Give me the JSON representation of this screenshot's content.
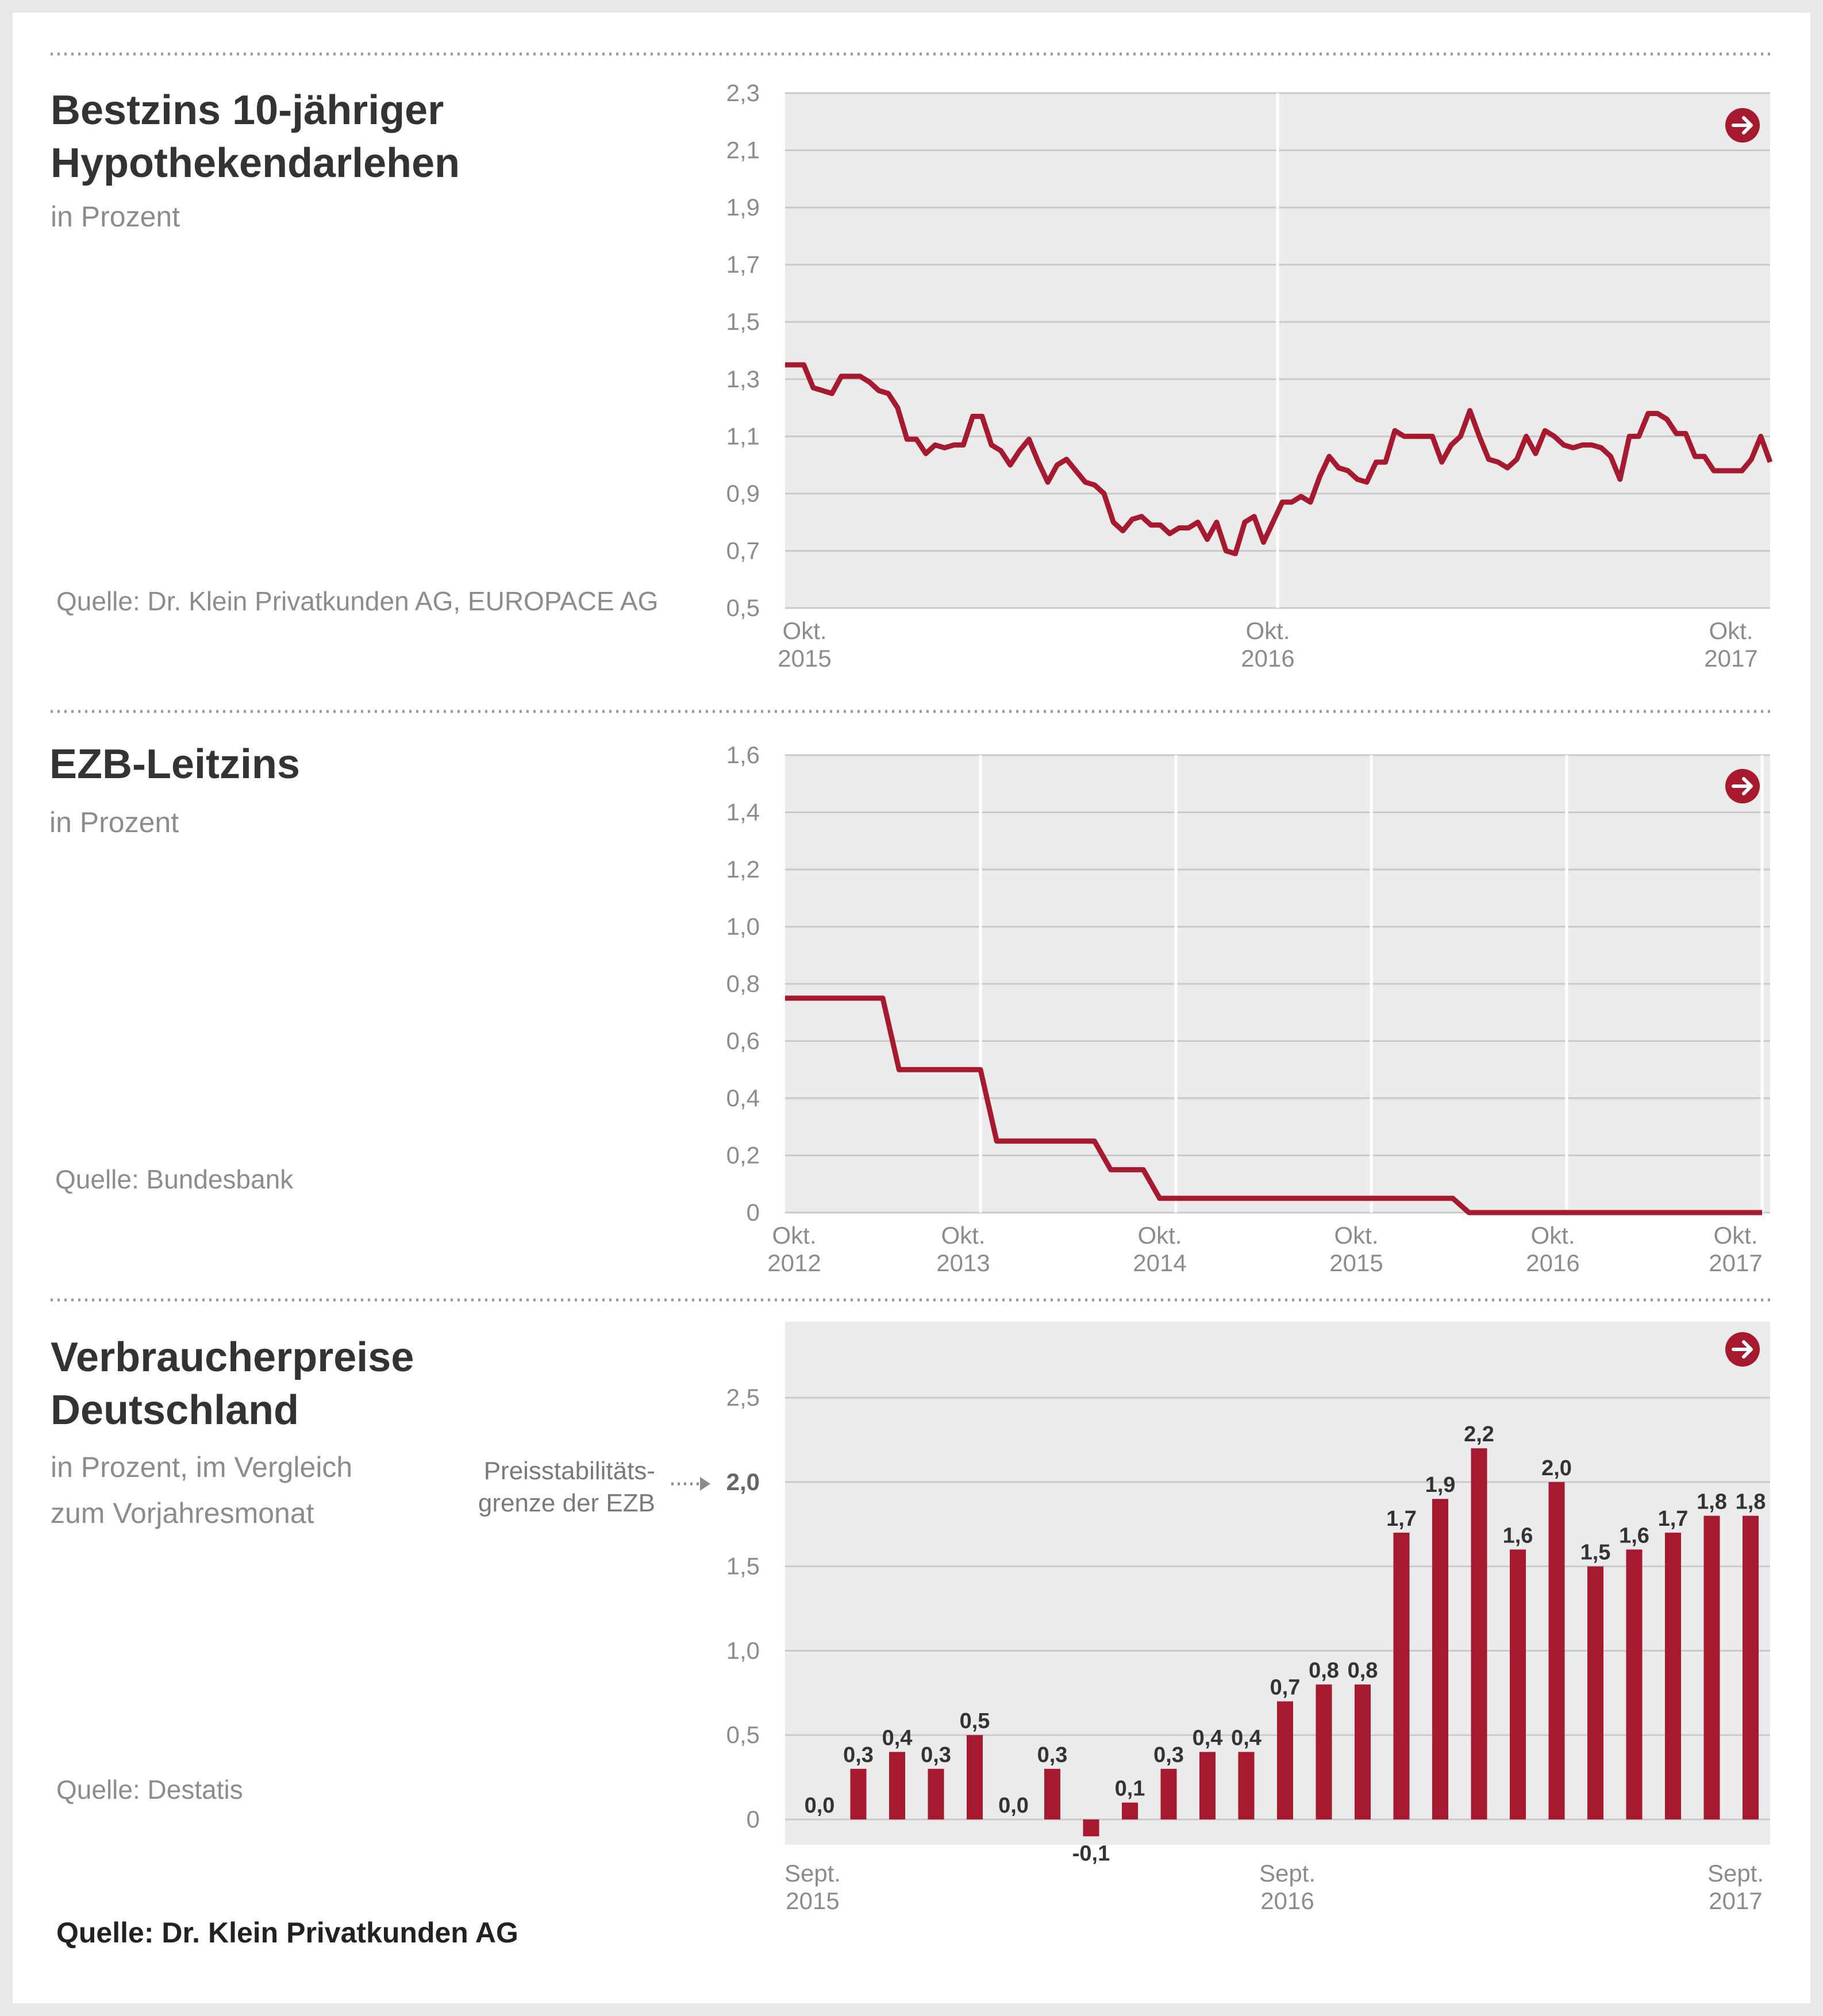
{
  "colors": {
    "accent": "#a6192e",
    "panel_bg": "#ebebeb",
    "grid": "#c9c9c9",
    "text": "#333333",
    "muted": "#8c8c8c"
  },
  "footer": {
    "source": "Quelle: Dr. Klein Privatkunden AG"
  },
  "panels": [
    {
      "title_lines": [
        "Bestzins 10-jähriger",
        "Hypothekendarlehen"
      ],
      "subtitle_lines": [
        "in Prozent"
      ],
      "source": "Quelle: Dr. Klein Privatkunden AG, EUROPACE AG",
      "icon": "arrow-right-circle-icon"
    },
    {
      "title_lines": [
        "EZB-Leitzins"
      ],
      "subtitle_lines": [
        "in Prozent"
      ],
      "source": "Quelle: Bundesbank",
      "icon": "arrow-right-circle-icon"
    },
    {
      "title_lines": [
        "Verbraucherpreise",
        "Deutschland"
      ],
      "subtitle_lines": [
        "in Prozent, im Vergleich",
        "zum Vorjahresmonat"
      ],
      "source": "Quelle: Destatis",
      "icon": "arrow-right-circle-icon",
      "annotation_lines": [
        "Preisstabilitäts-",
        "grenze der EZB"
      ]
    }
  ],
  "chart_data": [
    {
      "type": "line",
      "title": "Bestzins 10-jähriger Hypothekendarlehen",
      "ylabel": "in Prozent",
      "ylim": [
        0.5,
        2.3
      ],
      "yticks": [
        "0,5",
        "0,7",
        "0,9",
        "1,1",
        "1,3",
        "1,5",
        "1,7",
        "1,9",
        "2,1",
        "2,3"
      ],
      "xlim": [
        0,
        104
      ],
      "xticks": [
        {
          "x": 0,
          "label": [
            "Okt.",
            "2015"
          ]
        },
        {
          "x": 52,
          "label": [
            "Okt.",
            "2016"
          ]
        },
        {
          "x": 104,
          "label": [
            "Okt.",
            "2017"
          ]
        }
      ],
      "x_unit": "weeks since Okt. 2015",
      "series": [
        {
          "values": [
            1.35,
            1.35,
            1.35,
            1.27,
            1.26,
            1.25,
            1.31,
            1.31,
            1.31,
            1.29,
            1.26,
            1.25,
            1.2,
            1.09,
            1.09,
            1.04,
            1.07,
            1.06,
            1.07,
            1.07,
            1.17,
            1.17,
            1.07,
            1.05,
            1.0,
            1.05,
            1.09,
            1.01,
            0.94,
            1.0,
            1.02,
            0.98,
            0.94,
            0.93,
            0.9,
            0.8,
            0.77,
            0.81,
            0.82,
            0.79,
            0.79,
            0.76,
            0.78,
            0.78,
            0.8,
            0.74,
            0.8,
            0.7,
            0.69,
            0.8,
            0.82,
            0.73,
            0.8,
            0.87,
            0.87,
            0.89,
            0.87,
            0.96,
            1.03,
            0.99,
            0.98,
            0.95,
            0.94,
            1.01,
            1.01,
            1.12,
            1.1,
            1.1,
            1.1,
            1.1,
            1.01,
            1.07,
            1.1,
            1.19,
            1.1,
            1.02,
            1.01,
            0.99,
            1.02,
            1.1,
            1.04,
            1.12,
            1.1,
            1.07,
            1.06,
            1.07,
            1.07,
            1.06,
            1.03,
            0.95,
            1.1,
            1.1,
            1.18,
            1.18,
            1.16,
            1.11,
            1.11,
            1.03,
            1.03,
            0.98,
            0.98,
            0.98,
            0.98,
            1.02,
            1.1,
            1.01
          ]
        }
      ]
    },
    {
      "type": "line",
      "title": "EZB-Leitzins",
      "ylabel": "in Prozent",
      "ylim": [
        0,
        1.6
      ],
      "yticks": [
        "0",
        "0,2",
        "0,4",
        "0,6",
        "0,8",
        "1,0",
        "1,2",
        "1,4",
        "1,6"
      ],
      "xlim": [
        0,
        60
      ],
      "xticks": [
        {
          "x": 0,
          "label": [
            "Okt.",
            "2012"
          ]
        },
        {
          "x": 12,
          "label": [
            "Okt.",
            "2013"
          ]
        },
        {
          "x": 24,
          "label": [
            "Okt.",
            "2014"
          ]
        },
        {
          "x": 36,
          "label": [
            "Okt.",
            "2015"
          ]
        },
        {
          "x": 48,
          "label": [
            "Okt.",
            "2016"
          ]
        },
        {
          "x": 60,
          "label": [
            "Okt.",
            "2017"
          ]
        }
      ],
      "x_unit": "months since Okt. 2012",
      "series": [
        {
          "points": [
            [
              0,
              0.75
            ],
            [
              6,
              0.75
            ],
            [
              7,
              0.5
            ],
            [
              12,
              0.5
            ],
            [
              13,
              0.25
            ],
            [
              19,
              0.25
            ],
            [
              20,
              0.15
            ],
            [
              22,
              0.15
            ],
            [
              23,
              0.05
            ],
            [
              41,
              0.05
            ],
            [
              42,
              0.0
            ],
            [
              60,
              0.0
            ]
          ]
        }
      ]
    },
    {
      "type": "bar",
      "title": "Verbraucherpreise Deutschland",
      "ylabel": "in Prozent, im Vergleich zum Vorjahresmonat",
      "ylim": [
        -0.15,
        2.95
      ],
      "yticks": [
        "0",
        "0,5",
        "1,0",
        "1,5",
        "2,0",
        "2,5"
      ],
      "highlight_tick": "2,0",
      "xticks": [
        {
          "index": 0,
          "label": [
            "Sept.",
            "2015"
          ]
        },
        {
          "index": 12,
          "label": [
            "Sept.",
            "2016"
          ]
        },
        {
          "index": 24,
          "label": [
            "Sept.",
            "2017"
          ]
        }
      ],
      "values": [
        0.0,
        0.3,
        0.4,
        0.3,
        0.5,
        0.0,
        0.3,
        -0.1,
        0.1,
        0.3,
        0.4,
        0.4,
        0.7,
        0.8,
        0.8,
        1.7,
        1.9,
        2.2,
        1.6,
        2.0,
        1.5,
        1.6,
        1.7,
        1.8,
        1.8
      ],
      "labels": [
        "0,0",
        "0,3",
        "0,4",
        "0,3",
        "0,5",
        "0,0",
        "0,3",
        "-0,1",
        "0,1",
        "0,3",
        "0,4",
        "0,4",
        "0,7",
        "0,8",
        "0,8",
        "1,7",
        "1,9",
        "2,2",
        "1,6",
        "2,0",
        "1,5",
        "1,6",
        "1,7",
        "1,8",
        "1,8"
      ]
    }
  ]
}
